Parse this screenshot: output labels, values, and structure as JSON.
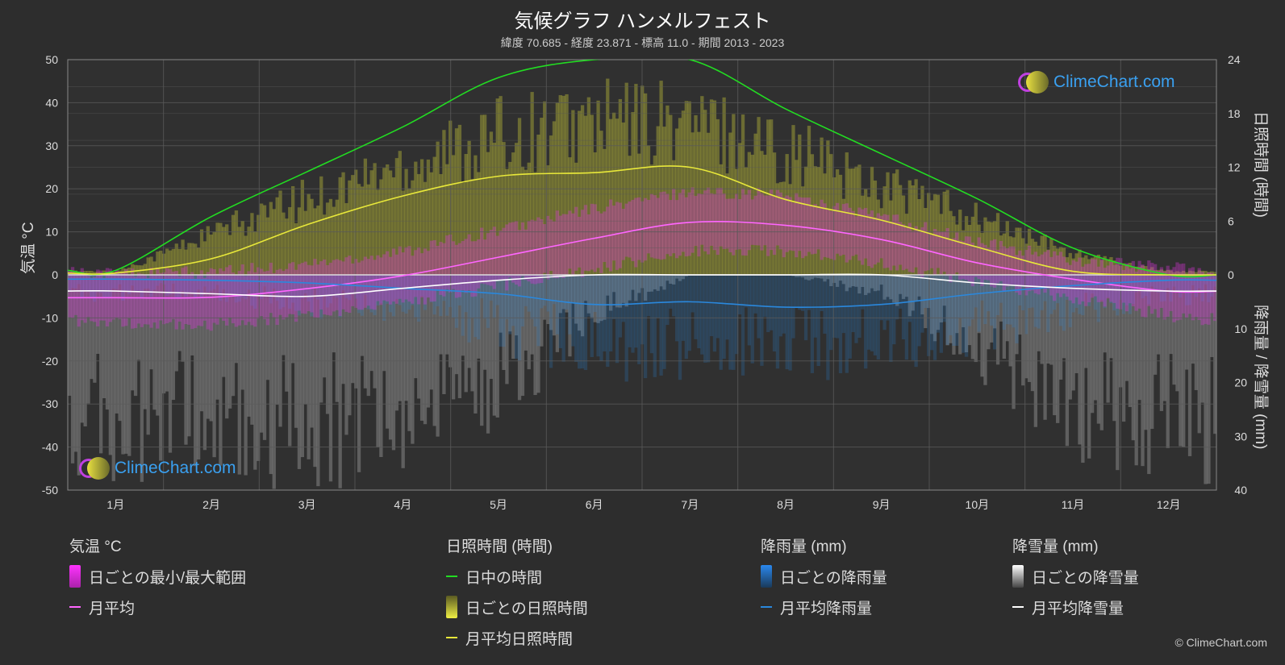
{
  "title": "気候グラフ ハンメルフェスト",
  "subtitle": "緯度 70.685 - 経度 23.871 - 標高 11.0 - 期間 2013 - 2023",
  "axes": {
    "left_label": "気温 °C",
    "right_top_label": "日照時間 (時間)",
    "right_bottom_label": "降雨量 / 降雪量 (mm)"
  },
  "legend": {
    "temperature": {
      "title": "気温 °C",
      "range_label": "日ごとの最小/最大範囲",
      "avg_label": "月平均"
    },
    "sunshine": {
      "title": "日照時間 (時間)",
      "daylight_label": "日中の時間",
      "daily_label": "日ごとの日照時間",
      "avg_label": "月平均日照時間"
    },
    "rain": {
      "title": "降雨量 (mm)",
      "daily_label": "日ごとの降雨量",
      "avg_label": "月平均降雨量"
    },
    "snow": {
      "title": "降雪量 (mm)",
      "daily_label": "日ごとの降雪量",
      "avg_label": "月平均降雪量"
    }
  },
  "logo_text": "ClimeChart.com",
  "copyright": "© ClimeChart.com",
  "colors": {
    "background": "#2d2d2d",
    "grid": "#5a5a5a",
    "daylight": "#22dd22",
    "sunshine": "#e8e83a",
    "temp_avg": "#ff66ff",
    "temp_range": "#dd33dd",
    "rain": "#2a88dd",
    "snow": "#ffffff"
  },
  "chart_data": {
    "type": "line",
    "categories": [
      "1月",
      "2月",
      "3月",
      "4月",
      "5月",
      "6月",
      "7月",
      "8月",
      "9月",
      "10月",
      "11月",
      "12月"
    ],
    "temperature_axis": {
      "ylim": [
        -50,
        50
      ],
      "ticks": [
        "50",
        "40",
        "30",
        "20",
        "10",
        "0",
        "-10",
        "-20",
        "-30",
        "-40",
        "-50"
      ]
    },
    "sunshine_axis": {
      "ylim": [
        0,
        24
      ],
      "ticks": [
        "24",
        "18",
        "12",
        "6",
        "0"
      ]
    },
    "precip_axis": {
      "ylim": [
        0,
        40
      ],
      "ticks": [
        "0",
        "10",
        "20",
        "30",
        "40"
      ]
    },
    "series": [
      {
        "name": "日中の時間",
        "axis": "sunshine",
        "values": [
          0.5,
          6.5,
          11.5,
          16.5,
          22.0,
          24.0,
          24.0,
          18.5,
          13.5,
          8.5,
          3.0,
          0.0
        ]
      },
      {
        "name": "月平均日照時間",
        "axis": "sunshine",
        "values": [
          0.2,
          1.8,
          5.6,
          8.8,
          11.0,
          11.4,
          12.0,
          8.4,
          6.1,
          3.1,
          0.4,
          0.0
        ]
      },
      {
        "name": "月平均",
        "axis": "temperature",
        "values": [
          -5.3,
          -5.2,
          -3.2,
          -0.2,
          4.1,
          8.5,
          12.2,
          11.5,
          8.2,
          2.8,
          -1.0,
          -3.8
        ]
      },
      {
        "name": "月平均降雨量",
        "axis": "precip",
        "values": [
          0.8,
          1.0,
          1.5,
          2.5,
          3.5,
          5.5,
          5.0,
          6.0,
          5.5,
          3.5,
          2.0,
          1.0
        ]
      },
      {
        "name": "月平均降雪量",
        "axis": "precip",
        "values": [
          3.0,
          3.5,
          4.0,
          2.5,
          1.0,
          0.0,
          0.0,
          0.0,
          0.0,
          1.5,
          2.5,
          3.0
        ]
      }
    ],
    "daily_temp_range": {
      "min": [
        -10,
        -10,
        -8,
        -5,
        -1,
        3,
        7,
        7,
        4,
        0,
        -4,
        -8
      ],
      "max": [
        -1,
        -1,
        1,
        4,
        9,
        14,
        18,
        17,
        12,
        6,
        2,
        0
      ]
    },
    "daily_sunshine_max": [
      0.5,
      6.0,
      11.0,
      16.0,
      20.0,
      22.0,
      22.0,
      18.0,
      13.0,
      8.0,
      3.0,
      0.5
    ],
    "daily_snow_max": [
      40,
      40,
      40,
      40,
      30,
      10,
      0,
      0,
      5,
      20,
      35,
      40
    ],
    "daily_rain_max": [
      5,
      5,
      8,
      10,
      15,
      20,
      20,
      20,
      20,
      15,
      10,
      6
    ],
    "grid": true
  }
}
